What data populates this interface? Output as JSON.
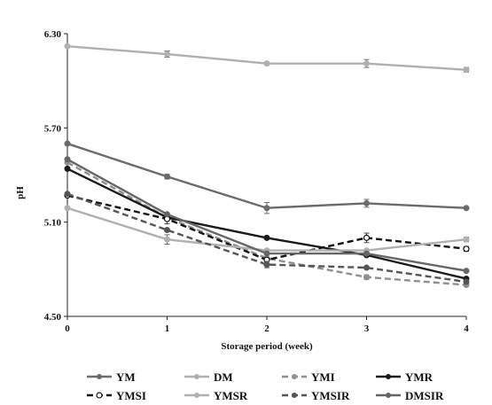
{
  "chart_data": {
    "type": "line",
    "title": "",
    "xlabel": "Storage period  (week)",
    "ylabel": "pH",
    "x": [
      0,
      1,
      2,
      3,
      4
    ],
    "x_tick_labels": [
      "0",
      "1",
      "2",
      "3",
      "4"
    ],
    "ylim": [
      4.5,
      6.3
    ],
    "y_tick_labels": [
      "4.50",
      "5.10",
      "5.70",
      "6.30"
    ],
    "y_ticks": [
      4.5,
      5.1,
      5.7,
      6.3
    ],
    "grid": false,
    "legend_position": "bottom",
    "series": [
      {
        "name": "YM",
        "values": [
          5.6,
          5.39,
          5.19,
          5.22,
          5.19
        ],
        "color": "#6b6b6b",
        "dash": "solid",
        "marker": "filled",
        "error": [
          0,
          0.015,
          0.035,
          0.025,
          0
        ],
        "error_color": "#6b6b6b"
      },
      {
        "name": "DM",
        "values": [
          6.22,
          6.17,
          6.11,
          6.11,
          6.07
        ],
        "color": "#b0b0b0",
        "dash": "solid",
        "marker": "filled",
        "error": [
          0,
          0.02,
          0.01,
          0.025,
          0.015
        ],
        "error_color": "#6b6b6b"
      },
      {
        "name": "YMI",
        "values": [
          5.48,
          5.13,
          4.87,
          4.75,
          4.7
        ],
        "color": "#8f8f8f",
        "dash": "dashed",
        "marker": "filled",
        "error": [
          0,
          0,
          0,
          0.015,
          0
        ],
        "error_color": "#8f8f8f"
      },
      {
        "name": "YMR",
        "values": [
          5.44,
          5.13,
          5.0,
          4.89,
          4.74
        ],
        "color": "#1a1a1a",
        "dash": "solid",
        "marker": "filled",
        "error": [
          0,
          0,
          0,
          0,
          0
        ],
        "error_color": "#1a1a1a"
      },
      {
        "name": "YMSI",
        "values": [
          5.27,
          5.12,
          4.86,
          5.0,
          4.93
        ],
        "color": "#111111",
        "dash": "dashed",
        "marker": "open",
        "error": [
          0,
          0.03,
          0,
          0.03,
          0.015
        ],
        "error_color": "#444444"
      },
      {
        "name": "YMSR",
        "values": [
          5.19,
          4.99,
          4.92,
          4.92,
          4.99
        ],
        "color": "#b0b0b0",
        "dash": "solid",
        "marker": "filled",
        "error": [
          0,
          0.03,
          0,
          0,
          0.015
        ],
        "error_color": "#6b6b6b"
      },
      {
        "name": "YMSIR",
        "values": [
          5.28,
          5.05,
          4.83,
          4.81,
          4.72
        ],
        "color": "#555555",
        "dash": "dashed",
        "marker": "filled",
        "error": [
          0,
          0,
          0.02,
          0,
          0
        ],
        "error_color": "#555555"
      },
      {
        "name": "DMSIR",
        "values": [
          5.5,
          5.15,
          4.9,
          4.9,
          4.79
        ],
        "color": "#666666",
        "dash": "solid",
        "marker": "filled",
        "error": [
          0,
          0,
          0,
          0,
          0
        ],
        "error_color": "#666666"
      }
    ]
  }
}
